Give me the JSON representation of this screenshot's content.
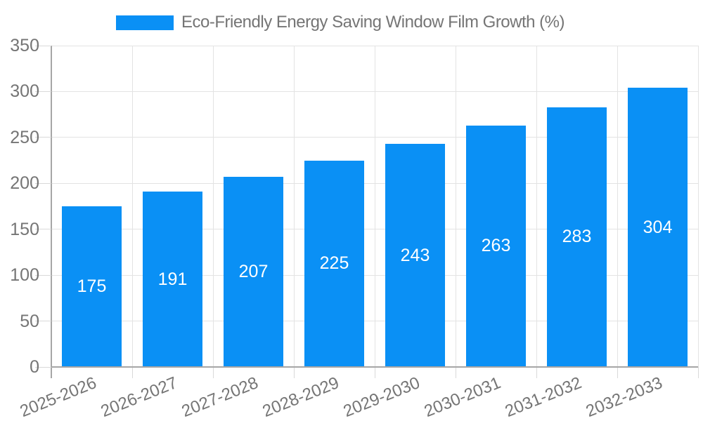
{
  "chart_data": {
    "type": "bar",
    "title": "Eco-Friendly Energy Saving Window Film Growth (%)",
    "legend": {
      "position": "top",
      "label": "Eco-Friendly Energy Saving Window Film Growth (%)"
    },
    "categories": [
      "2025-2026",
      "2026-2027",
      "2027-2028",
      "2028-2029",
      "2029-2030",
      "2030-2031",
      "2031-2032",
      "2032-2033"
    ],
    "values": [
      175,
      191,
      207,
      225,
      243,
      263,
      283,
      304
    ],
    "xlabel": "",
    "ylabel": "",
    "ylim": [
      0,
      350
    ],
    "yticks": [
      0,
      50,
      100,
      150,
      200,
      250,
      300,
      350
    ],
    "grid": true,
    "x_label_rotation_deg": -22,
    "legend_position": "top",
    "colors": {
      "bar": "#0a90f5",
      "bar_label": "#ffffff",
      "axis_text": "#757575",
      "grid_line": "#e3e3e3",
      "axis_line": "#a6a6a6",
      "tick_line": "#d9d9d9",
      "background": "#ffffff"
    }
  }
}
